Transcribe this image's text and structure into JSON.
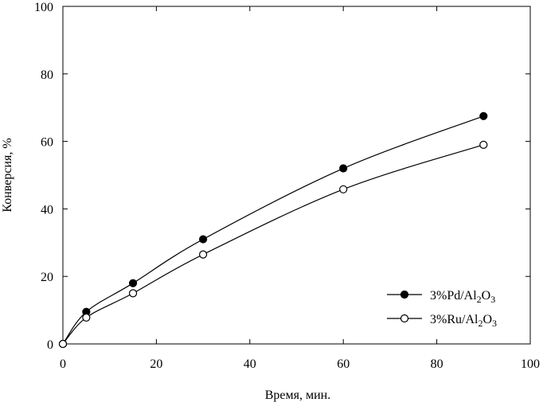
{
  "chart_data": {
    "type": "line",
    "title": "",
    "xlabel": "Время, мин.",
    "ylabel": "Конверсия, %",
    "xlim": [
      0,
      100
    ],
    "ylim": [
      0,
      100
    ],
    "xticks": [
      0,
      20,
      40,
      60,
      80,
      100
    ],
    "yticks": [
      0,
      20,
      40,
      60,
      80,
      100
    ],
    "grid": false,
    "legend_position": "bottom-right",
    "series": [
      {
        "name": "3%Pd/Al2O3",
        "label_parts": [
          "3%Pd/Al",
          "2",
          "O",
          "3"
        ],
        "marker": "filled-circle",
        "color": "#000000",
        "x": [
          0,
          5,
          15,
          30,
          60,
          90
        ],
        "y": [
          0,
          9.5,
          18,
          31,
          52,
          67.5
        ]
      },
      {
        "name": "3%Ru/Al2O3",
        "label_parts": [
          "3%Ru/Al",
          "2",
          "O",
          "3"
        ],
        "marker": "open-circle",
        "color": "#000000",
        "x": [
          0,
          5,
          15,
          30,
          60,
          90
        ],
        "y": [
          0,
          7.8,
          15,
          26.5,
          45.8,
          59
        ]
      }
    ]
  }
}
